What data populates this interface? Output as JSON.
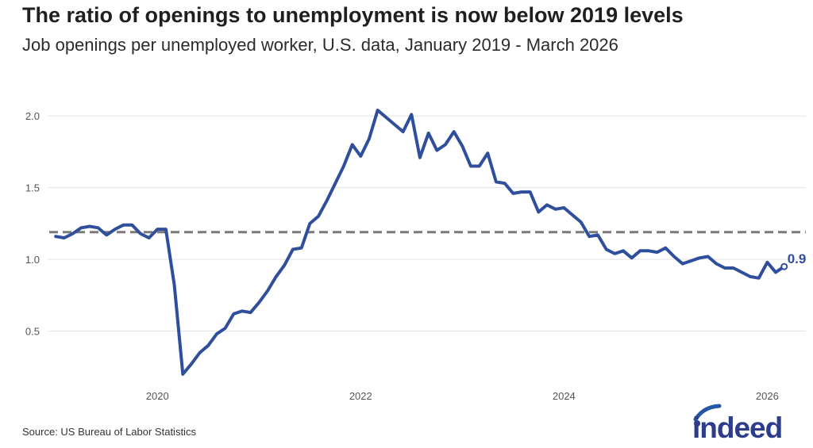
{
  "title": "The ratio of openings to unemployment is now below 2019 levels",
  "subtitle": "Job openings per unemployed worker, U.S. data, January 2019 - March 2026",
  "source": "Source: US Bureau of Labor Statistics",
  "brand": {
    "name": "indeed",
    "color": "#2d3d8c",
    "arc_color": "#2557a7"
  },
  "colors": {
    "line": "#2f4f9c",
    "reference_line": "#7a7a7a",
    "grid": "#e3e3e3",
    "tick_text": "#555555"
  },
  "chart_data": {
    "type": "line",
    "title": "The ratio of openings to unemployment is now below 2019 levels",
    "subtitle": "Job openings per unemployed worker, U.S. data, January 2019 - March 2026",
    "xlabel": "",
    "ylabel": "",
    "xlim": [
      2018.92,
      2026.38
    ],
    "ylim": [
      0.1,
      2.2
    ],
    "yticks": [
      0.5,
      1.0,
      1.5,
      2.0
    ],
    "ytick_labels": [
      "0.5",
      "1.0",
      "1.5",
      "2.0"
    ],
    "xticks": [
      2020,
      2022,
      2024,
      2026
    ],
    "xtick_labels": [
      "2020",
      "2022",
      "2024",
      "2026"
    ],
    "grid": "horizontal",
    "reference_line": {
      "y": 1.19,
      "style": "dashed"
    },
    "end_label": "0.9",
    "series": [
      {
        "x": [
          2019.0,
          2019.083,
          2019.167,
          2019.25,
          2019.333,
          2019.417,
          2019.5,
          2019.583,
          2019.667,
          2019.75,
          2019.833,
          2019.917,
          2020.0,
          2020.083,
          2020.167,
          2020.25,
          2020.333,
          2020.417,
          2020.5,
          2020.583,
          2020.667,
          2020.75,
          2020.833,
          2020.917,
          2021.0,
          2021.083,
          2021.167,
          2021.25,
          2021.333,
          2021.417,
          2021.5,
          2021.583,
          2021.667,
          2021.75,
          2021.833,
          2021.917,
          2022.0,
          2022.083,
          2022.167,
          2022.25,
          2022.333,
          2022.417,
          2022.5,
          2022.583,
          2022.667,
          2022.75,
          2022.833,
          2022.917,
          2023.0,
          2023.083,
          2023.167,
          2023.25,
          2023.333,
          2023.417,
          2023.5,
          2023.583,
          2023.667,
          2023.75,
          2023.833,
          2023.917,
          2024.0,
          2024.083,
          2024.167,
          2024.25,
          2024.333,
          2024.417,
          2024.5,
          2024.583,
          2024.667,
          2024.75,
          2024.833,
          2024.917,
          2025.0,
          2025.083,
          2025.167,
          2025.25,
          2025.333,
          2025.417,
          2025.5,
          2025.583,
          2025.667,
          2025.75,
          2025.833,
          2025.917,
          2026.0,
          2026.083,
          2026.167
        ],
        "values": [
          1.16,
          1.15,
          1.18,
          1.22,
          1.23,
          1.22,
          1.17,
          1.21,
          1.24,
          1.24,
          1.18,
          1.15,
          1.21,
          1.21,
          0.82,
          0.2,
          0.27,
          0.35,
          0.4,
          0.48,
          0.52,
          0.62,
          0.64,
          0.63,
          0.7,
          0.78,
          0.88,
          0.96,
          1.07,
          1.08,
          1.25,
          1.3,
          1.41,
          1.53,
          1.65,
          1.8,
          1.72,
          1.84,
          2.04,
          1.99,
          1.94,
          1.89,
          2.01,
          1.71,
          1.88,
          1.76,
          1.8,
          1.89,
          1.79,
          1.65,
          1.65,
          1.74,
          1.54,
          1.53,
          1.46,
          1.47,
          1.47,
          1.33,
          1.38,
          1.35,
          1.36,
          1.31,
          1.26,
          1.16,
          1.17,
          1.07,
          1.04,
          1.06,
          1.01,
          1.06,
          1.06,
          1.05,
          1.08,
          1.02,
          0.97,
          0.99,
          1.01,
          1.02,
          0.97,
          0.94,
          0.94,
          0.91,
          0.88,
          0.87,
          0.98,
          0.91,
          0.95
        ]
      }
    ]
  }
}
